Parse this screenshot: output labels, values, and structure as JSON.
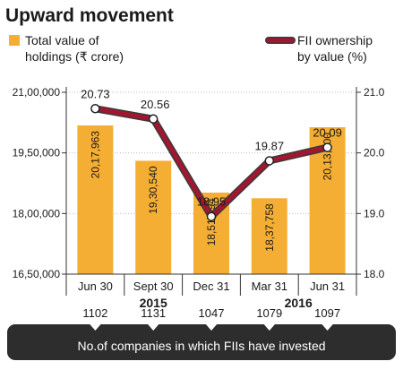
{
  "chart_data": {
    "type": "bar",
    "title": "Upward movement",
    "categories": [
      "Jun 30",
      "Sept 30",
      "Dec 31",
      "Mar 31",
      "Jun 31"
    ],
    "years": [
      {
        "label": "2015",
        "categories": [
          "Jun 30",
          "Sept 30",
          "Dec 31"
        ]
      },
      {
        "label": "2016",
        "categories": [
          "Mar 31",
          "Jun 31"
        ]
      }
    ],
    "series": [
      {
        "name": "Total value of holdings (₹ crore)",
        "legend_lines": [
          "Total value of",
          "holdings (₹ crore)"
        ],
        "type": "bar",
        "axis": "left",
        "values": [
          2017963,
          1930540,
          1851694,
          1837758,
          2013500
        ],
        "labels": [
          "20,17,963",
          "19,30,540",
          "18,51,694",
          "18,37,758",
          "20,13,500"
        ]
      },
      {
        "name": "FII ownership by value (%)",
        "legend_lines": [
          "FII ownership",
          "by value (%)"
        ],
        "type": "line",
        "axis": "right",
        "values": [
          20.73,
          20.56,
          18.95,
          19.87,
          20.09
        ],
        "labels": [
          "20.73",
          "20.56",
          "18.95",
          "19.87",
          "20.09"
        ]
      }
    ],
    "y_left": {
      "ylim": [
        1650000,
        2100000
      ],
      "ticks": [
        1650000,
        1800000,
        1950000,
        2100000
      ],
      "tick_labels": [
        "16,50,000",
        "18,00,000",
        "19,50,000",
        "21,00,000"
      ]
    },
    "y_right": {
      "ylim": [
        18.0,
        21.0
      ],
      "ticks": [
        18.0,
        19.0,
        20.0,
        21.0
      ],
      "tick_labels": [
        "18.0",
        "19.0",
        "20.0",
        "21.0"
      ]
    },
    "companies": {
      "values": [
        "1102",
        "1131",
        "1047",
        "1079",
        "1097"
      ],
      "caption": "No.of companies in which FIIs have invested"
    },
    "colors": {
      "bar": "#F5AE34",
      "line": "#A3162F",
      "line_outline": "#3a3a3a",
      "band": "#2d2d2d",
      "text": "#1a1a1a"
    }
  }
}
